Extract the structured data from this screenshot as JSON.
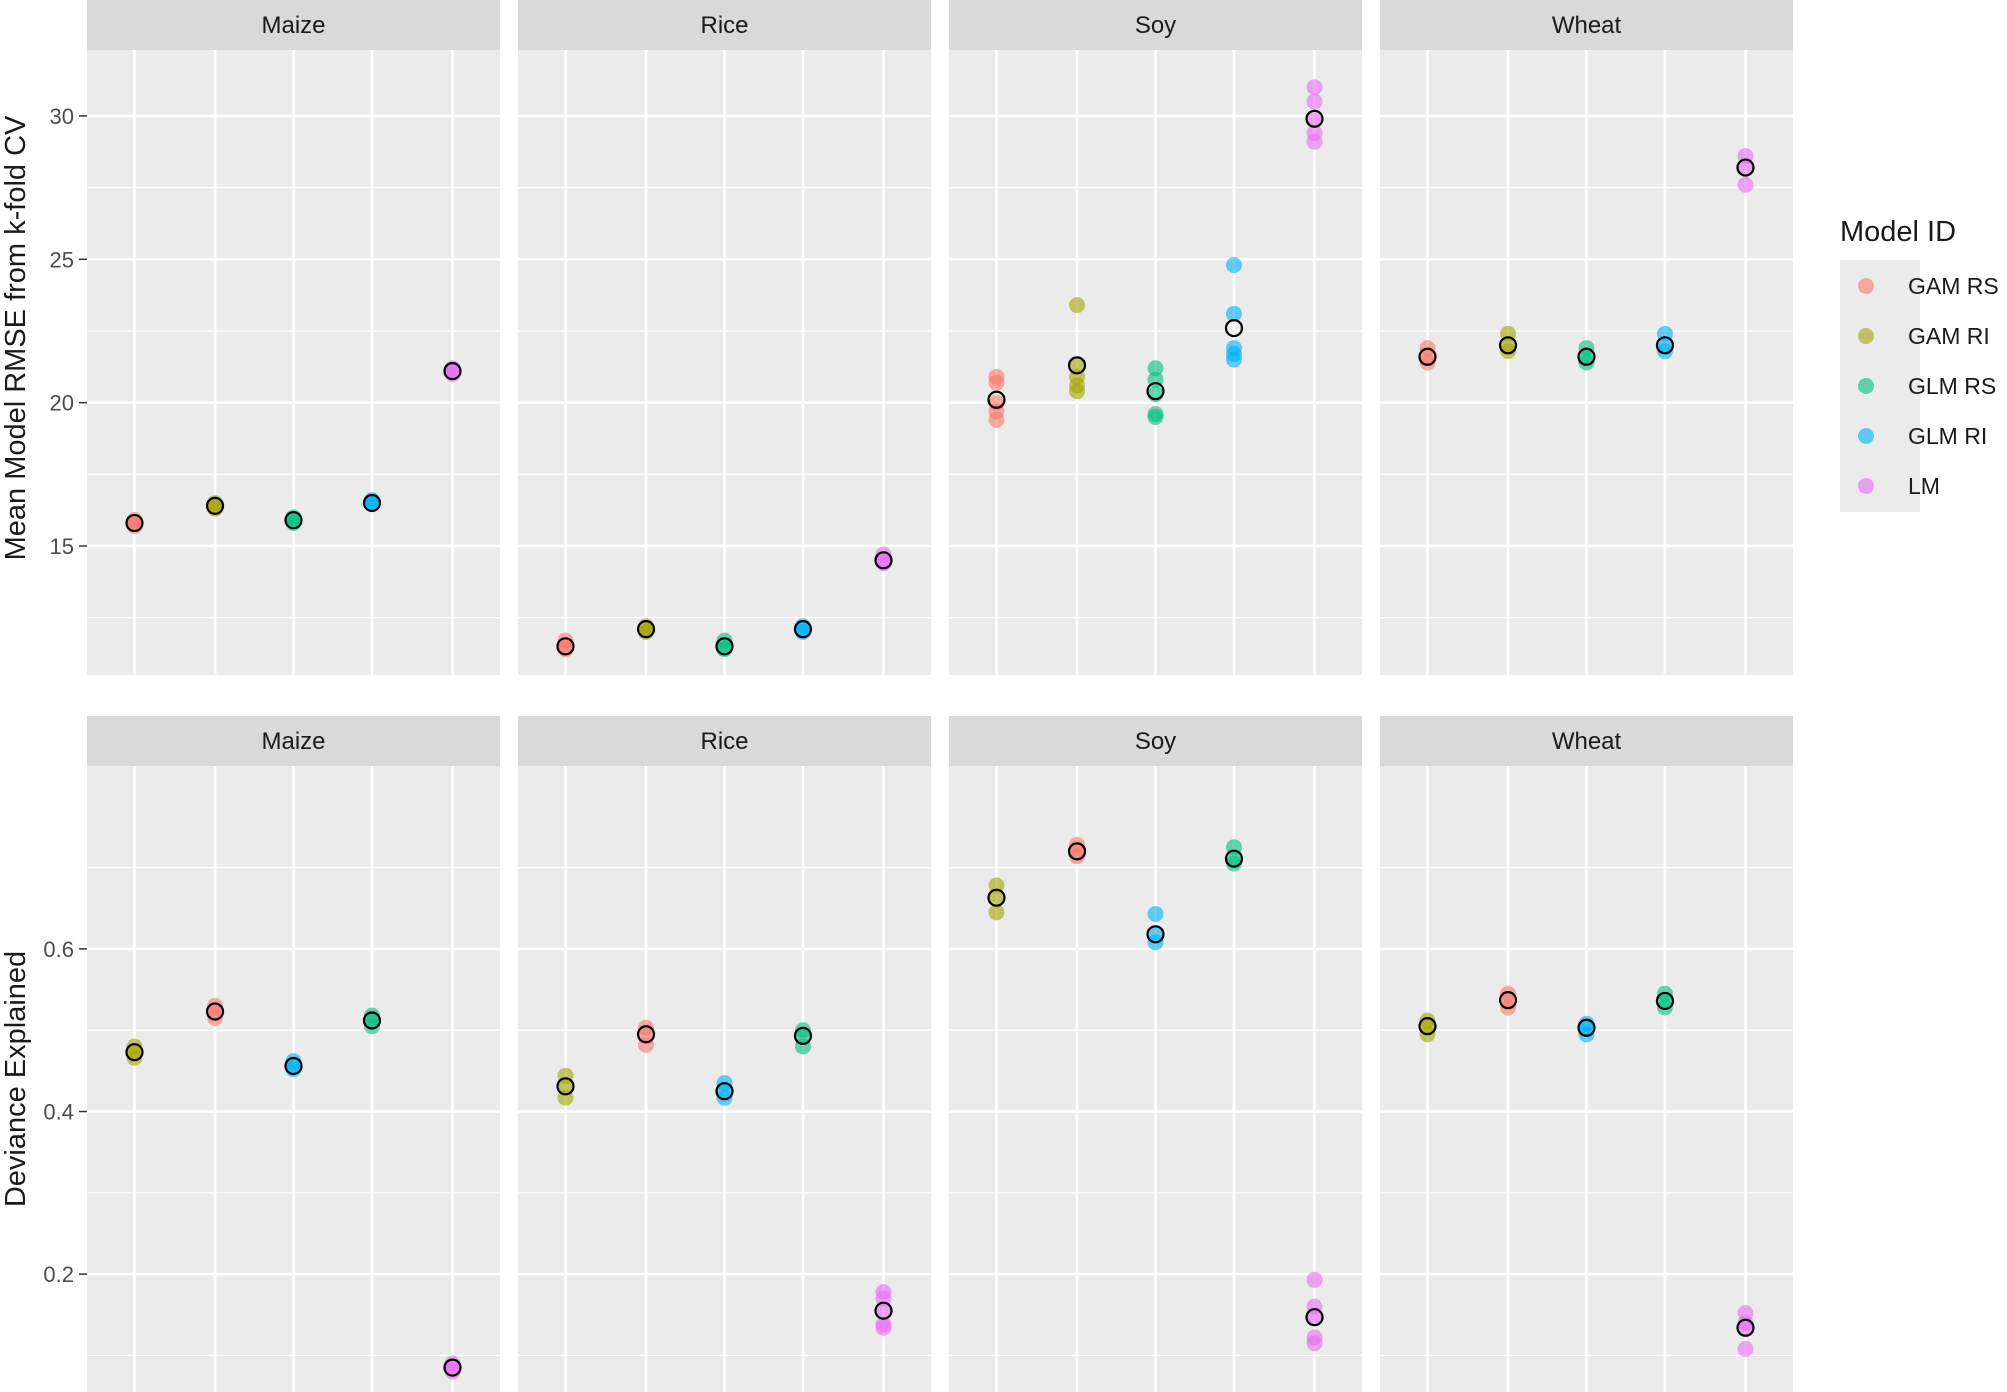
{
  "chart_data": [
    {
      "type": "scatter",
      "ylabel": "Mean Model RMSE from k-fold CV",
      "ylim": [
        10.5,
        32.3
      ],
      "yticks": [
        15,
        20,
        25,
        30
      ],
      "panels": [
        {
          "facet": "Maize",
          "points": [
            {
              "model": "GAM RS",
              "values": [
                15.9,
                15.8,
                15.7
              ],
              "mean": 15.8
            },
            {
              "model": "GAM RI",
              "values": [
                16.5,
                16.4,
                16.3
              ],
              "mean": 16.4
            },
            {
              "model": "GLM RS",
              "values": [
                16.0,
                15.9,
                15.8
              ],
              "mean": 15.9
            },
            {
              "model": "GLM RI",
              "values": [
                16.6,
                16.5,
                16.5
              ],
              "mean": 16.5
            },
            {
              "model": "LM",
              "values": [
                21.2,
                21.1,
                21.0
              ],
              "mean": 21.1
            }
          ]
        },
        {
          "facet": "Rice",
          "points": [
            {
              "model": "GAM RS",
              "values": [
                11.7,
                11.5,
                11.4
              ],
              "mean": 11.5
            },
            {
              "model": "GAM RI",
              "values": [
                12.2,
                12.1,
                12.0
              ],
              "mean": 12.1
            },
            {
              "model": "GLM RS",
              "values": [
                11.7,
                11.5,
                11.4
              ],
              "mean": 11.5
            },
            {
              "model": "GLM RI",
              "values": [
                12.2,
                12.1,
                12.0
              ],
              "mean": 12.1
            },
            {
              "model": "LM",
              "values": [
                14.7,
                14.5,
                14.4
              ],
              "mean": 14.5
            }
          ]
        },
        {
          "facet": "Soy",
          "points": [
            {
              "model": "GAM RS",
              "values": [
                20.9,
                20.7,
                20.0,
                19.7,
                19.4
              ],
              "mean": 20.1
            },
            {
              "model": "GAM RI",
              "values": [
                23.4,
                21.3,
                20.9,
                20.6,
                20.4
              ],
              "mean": 21.3
            },
            {
              "model": "GLM RS",
              "values": [
                21.2,
                20.8,
                20.3,
                19.6,
                19.5
              ],
              "mean": 20.4
            },
            {
              "model": "GLM RI",
              "values": [
                24.8,
                23.1,
                21.9,
                21.7,
                21.5
              ],
              "mean": 22.6
            },
            {
              "model": "LM",
              "values": [
                31.0,
                30.5,
                29.9,
                29.4,
                29.1
              ],
              "mean": 29.9
            }
          ]
        },
        {
          "facet": "Wheat",
          "points": [
            {
              "model": "GAM RS",
              "values": [
                21.9,
                21.6,
                21.4
              ],
              "mean": 21.6
            },
            {
              "model": "GAM RI",
              "values": [
                22.4,
                22.0,
                21.8
              ],
              "mean": 22.0
            },
            {
              "model": "GLM RS",
              "values": [
                21.9,
                21.6,
                21.4
              ],
              "mean": 21.6
            },
            {
              "model": "GLM RI",
              "values": [
                22.4,
                22.0,
                21.8
              ],
              "mean": 22.0
            },
            {
              "model": "LM",
              "values": [
                28.6,
                28.2,
                27.6
              ],
              "mean": 28.2
            }
          ]
        }
      ]
    },
    {
      "type": "scatter",
      "ylabel": "Deviance Explained",
      "ylim": [
        0.055,
        0.825
      ],
      "yticks": [
        0.2,
        0.4,
        0.6
      ],
      "yticklabels": [
        "0.2",
        "0.4",
        "0.6"
      ],
      "panels": [
        {
          "facet": "Maize",
          "points": [
            {
              "model": "GAM RI",
              "values": [
                0.48,
                0.473,
                0.466
              ],
              "mean": 0.473
            },
            {
              "model": "GAM RS",
              "values": [
                0.53,
                0.523,
                0.515
              ],
              "mean": 0.523
            },
            {
              "model": "GLM RI",
              "values": [
                0.462,
                0.456,
                0.452
              ],
              "mean": 0.456
            },
            {
              "model": "GLM RS",
              "values": [
                0.518,
                0.512,
                0.505
              ],
              "mean": 0.512
            },
            {
              "model": "LM",
              "values": [
                0.09,
                0.085,
                0.08
              ],
              "mean": 0.085
            }
          ]
        },
        {
          "facet": "Rice",
          "points": [
            {
              "model": "GAM RI",
              "values": [
                0.444,
                0.43,
                0.417
              ],
              "mean": 0.431
            },
            {
              "model": "GAM RS",
              "values": [
                0.503,
                0.495,
                0.482
              ],
              "mean": 0.495
            },
            {
              "model": "GLM RI",
              "values": [
                0.435,
                0.424,
                0.417
              ],
              "mean": 0.425
            },
            {
              "model": "GLM RS",
              "values": [
                0.5,
                0.492,
                0.48
              ],
              "mean": 0.493
            },
            {
              "model": "LM",
              "values": [
                0.178,
                0.17,
                0.155,
                0.138,
                0.134
              ],
              "mean": 0.155
            }
          ]
        },
        {
          "facet": "Soy",
          "points": [
            {
              "model": "GAM RI",
              "values": [
                0.678,
                0.663,
                0.645
              ],
              "mean": 0.663
            },
            {
              "model": "GAM RS",
              "values": [
                0.728,
                0.72,
                0.714
              ],
              "mean": 0.72
            },
            {
              "model": "GLM RI",
              "values": [
                0.643,
                0.618,
                0.608
              ],
              "mean": 0.618
            },
            {
              "model": "GLM RS",
              "values": [
                0.725,
                0.712,
                0.705
              ],
              "mean": 0.711
            },
            {
              "model": "LM",
              "values": [
                0.193,
                0.16,
                0.147,
                0.122,
                0.115
              ],
              "mean": 0.147
            }
          ]
        },
        {
          "facet": "Wheat",
          "points": [
            {
              "model": "GAM RI",
              "values": [
                0.512,
                0.504,
                0.495
              ],
              "mean": 0.505
            },
            {
              "model": "GAM RS",
              "values": [
                0.545,
                0.537,
                0.528
              ],
              "mean": 0.537
            },
            {
              "model": "GLM RI",
              "values": [
                0.508,
                0.502,
                0.495
              ],
              "mean": 0.503
            },
            {
              "model": "GLM RS",
              "values": [
                0.545,
                0.536,
                0.528
              ],
              "mean": 0.536
            },
            {
              "model": "LM",
              "values": [
                0.152,
                0.14,
                0.133,
                0.108
              ],
              "mean": 0.134
            }
          ]
        }
      ]
    }
  ],
  "legend": {
    "title": "Model ID",
    "placement": "right",
    "items": [
      {
        "label": "GAM RS",
        "color": "#F8766D"
      },
      {
        "label": "GAM RI",
        "color": "#A3A500"
      },
      {
        "label": "GLM RS",
        "color": "#00BF7D"
      },
      {
        "label": "GLM RI",
        "color": "#00B0F6"
      },
      {
        "label": "LM",
        "color": "#E76BF3"
      }
    ]
  },
  "styling": {
    "panel_background": "#EBEBEB",
    "strip_background": "#D9D9D9",
    "grid_color": "#FFFFFF",
    "mean_marker_stroke": "#000000",
    "point_opacity": 0.6
  }
}
